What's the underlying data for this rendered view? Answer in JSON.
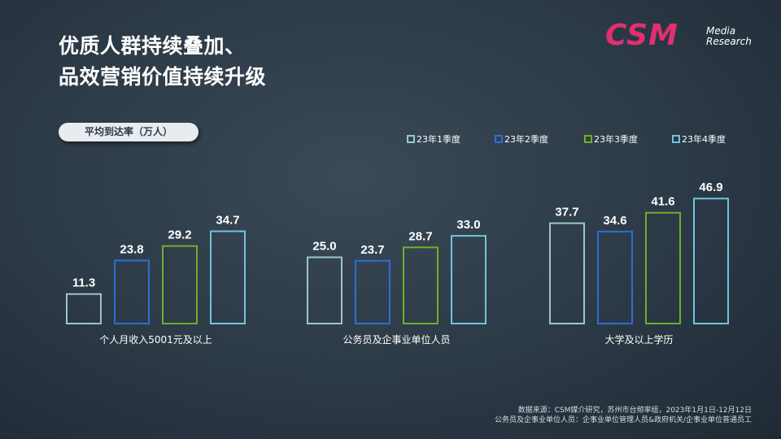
{
  "title": {
    "line1": "优质人群持续叠加、",
    "line2": "品效营销价值持续升级"
  },
  "logo": {
    "mark": "CSM",
    "line1": "Media",
    "line2": "Research"
  },
  "metric_label": "平均到达率（万人）",
  "chart_data": {
    "type": "bar",
    "categories": [
      "个人月收入5001元及以上",
      "公务员及企事业单位人员",
      "大学及以上学历"
    ],
    "series": [
      {
        "name": "23年1季度",
        "values": [
          11.3,
          25.0,
          37.7
        ],
        "color": "#9dc8bf"
      },
      {
        "name": "23年2季度",
        "values": [
          23.8,
          23.7,
          34.6
        ],
        "color": "#2b6fd6"
      },
      {
        "name": "23年3季度",
        "values": [
          29.2,
          28.7,
          41.6
        ],
        "color": "#6fae2e"
      },
      {
        "name": "23年4季度",
        "values": [
          34.7,
          33.0,
          46.9
        ],
        "color": "#6ec6db"
      }
    ],
    "ylim": [
      0,
      50
    ],
    "grid": false,
    "legend": "top-right"
  },
  "source": {
    "line1": "数据来源：CSM媒介研究，苏州市台频率组，2023年1月1日-12月12日",
    "line2": "公务员及企事业单位人员：企事业单位管理人员&政府机关/企事业单位普通员工"
  }
}
